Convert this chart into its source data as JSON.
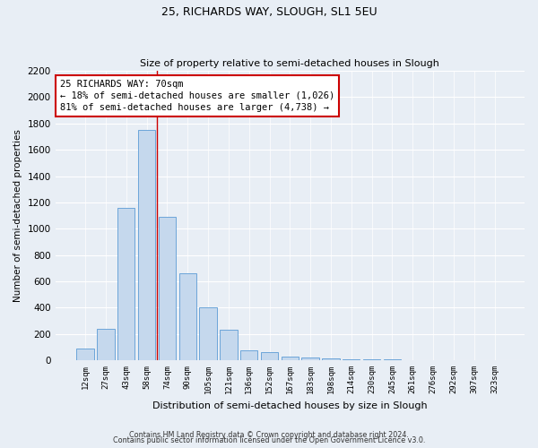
{
  "title": "25, RICHARDS WAY, SLOUGH, SL1 5EU",
  "subtitle": "Size of property relative to semi-detached houses in Slough",
  "xlabel": "Distribution of semi-detached houses by size in Slough",
  "ylabel": "Number of semi-detached properties",
  "categories": [
    "12sqm",
    "27sqm",
    "43sqm",
    "58sqm",
    "74sqm",
    "90sqm",
    "105sqm",
    "121sqm",
    "136sqm",
    "152sqm",
    "167sqm",
    "183sqm",
    "198sqm",
    "214sqm",
    "230sqm",
    "245sqm",
    "261sqm",
    "276sqm",
    "292sqm",
    "307sqm",
    "323sqm"
  ],
  "values": [
    90,
    240,
    1160,
    1750,
    1090,
    660,
    400,
    230,
    75,
    60,
    30,
    20,
    15,
    10,
    8,
    5,
    3,
    2,
    1,
    1,
    1
  ],
  "bar_color": "#c5d8ed",
  "bar_edge_color": "#5b9bd5",
  "annotation_text": "25 RICHARDS WAY: 70sqm\n← 18% of semi-detached houses are smaller (1,026)\n81% of semi-detached houses are larger (4,738) →",
  "box_color": "#ffffff",
  "box_edge_color": "#cc0000",
  "vline_color": "#cc0000",
  "vline_x_index": 3,
  "ylim": [
    0,
    2200
  ],
  "yticks": [
    0,
    200,
    400,
    600,
    800,
    1000,
    1200,
    1400,
    1600,
    1800,
    2000,
    2200
  ],
  "footer1": "Contains HM Land Registry data © Crown copyright and database right 2024.",
  "footer2": "Contains public sector information licensed under the Open Government Licence v3.0.",
  "bg_color": "#e8eef5",
  "plot_bg_color": "#e8eef5"
}
